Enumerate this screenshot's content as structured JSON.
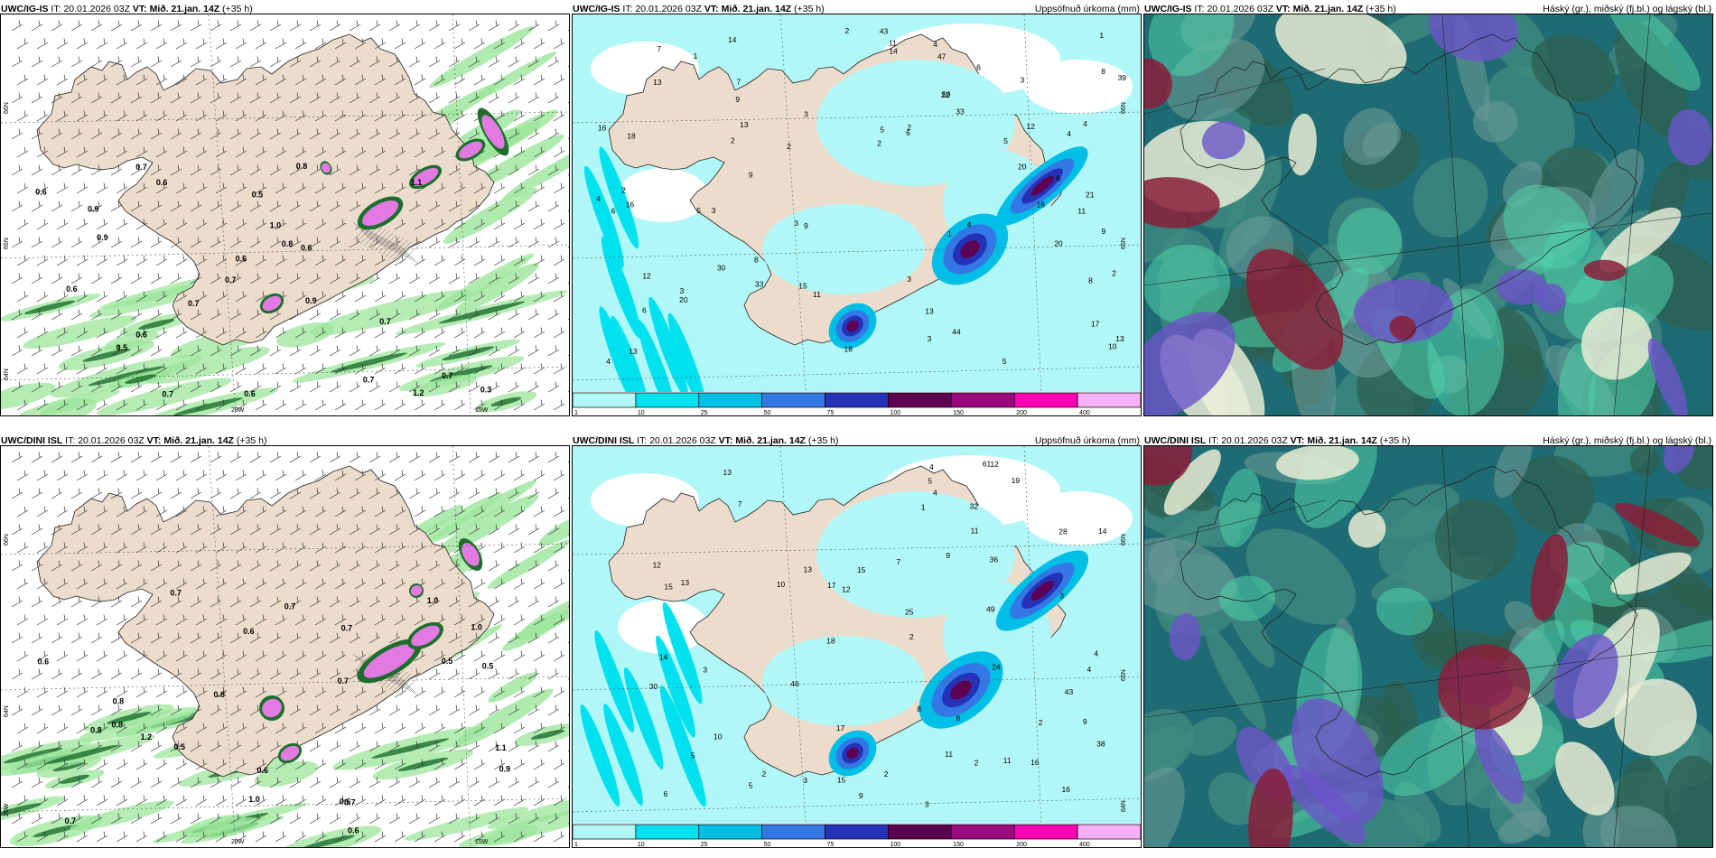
{
  "panels": [
    {
      "id": "ig-wind",
      "model": "UWC/IG-IS",
      "it_label": "IT:",
      "it_value": "20.01.2026 03Z",
      "vt_label": "VT:",
      "vt_value": "Mið. 21.jan. 14Z",
      "lead": "(+35 h)",
      "right_title": "",
      "axis_labels": [
        "66N",
        "65N",
        "64N",
        "20W",
        "15W"
      ],
      "values": [
        "0.5",
        "0.7",
        "0.9",
        "0.6",
        "0.6",
        "0.7",
        "0.6",
        "0.6",
        "0.6",
        "0.6",
        "0.5",
        "0.3",
        "1.1",
        "0.7",
        "0.8",
        "0.7",
        "1.0",
        "0.8",
        "0.7",
        "0.9",
        "0.9",
        "0.7",
        "0.6",
        "1.2",
        "0.7"
      ]
    },
    {
      "id": "ig-precip",
      "model": "UWC/IG-IS",
      "it_label": "IT:",
      "it_value": "20.01.2026 03Z",
      "vt_label": "VT:",
      "vt_value": "Mið. 21.jan. 14Z",
      "lead": "(+35 h)",
      "right_title": "Uppsöfnuð úrkoma (mm)",
      "axis_labels": [
        "66N",
        "65N"
      ],
      "values": [
        "3",
        "2",
        "1",
        "2",
        "6",
        "5",
        "3",
        "2",
        "9",
        "8",
        "1",
        "2",
        "4",
        "3",
        "5",
        "6",
        "4",
        "3",
        "6",
        "8",
        "5",
        "9",
        "7",
        "4",
        "3",
        "3",
        "1",
        "2",
        "6",
        "5",
        "4",
        "30",
        "39",
        "44",
        "47",
        "59",
        "33",
        "20",
        "43",
        "21",
        "13",
        "10",
        "8",
        "16",
        "13",
        "18",
        "22",
        "20",
        "18",
        "11",
        "20",
        "13",
        "17",
        "12",
        "11",
        "16",
        "2",
        "7",
        "13",
        "33",
        "16",
        "8",
        "9",
        "14",
        "15",
        "13",
        "12",
        "14",
        "11",
        "9",
        "4",
        "4",
        "2",
        "3"
      ]
    },
    {
      "id": "ig-cloud",
      "model": "UWC/IG-IS",
      "it_label": "IT:",
      "it_value": "20.01.2026 03Z",
      "vt_label": "VT:",
      "vt_value": "Mið. 21.jan. 14Z",
      "lead": "(+35 h)",
      "right_title": "Háský (gr.), miðský (fj.bl.) og lágský (bl.)",
      "axis_labels": [],
      "values": []
    },
    {
      "id": "dini-wind",
      "model": "UWC/DINI ISL",
      "it_label": "IT:",
      "it_value": "20.01.2026 03Z",
      "vt_label": "VT:",
      "vt_value": "Mið. 21.jan. 14Z",
      "lead": "(+35 h)",
      "right_title": "",
      "axis_labels": [
        "66N",
        "64N",
        "25W",
        "20W",
        "15W"
      ],
      "values": [
        "0.7",
        "0.5",
        "0.6",
        "0.8",
        "0.8",
        "1.2",
        "0.7",
        "0.7",
        "0.8",
        "0.5",
        "0.9",
        "1.0",
        "0.6",
        "1.0",
        "0.8",
        "0.5",
        "0.7",
        "0.7",
        "1.1",
        "0.6",
        "1.0",
        "0.6",
        "0.7",
        "0.6"
      ]
    },
    {
      "id": "dini-precip",
      "model": "UWC/DINI ISL",
      "it_label": "IT:",
      "it_value": "20.01.2026 03Z",
      "vt_label": "VT:",
      "vt_value": "Mið. 21.jan. 14Z",
      "lead": "(+35 h)",
      "right_title": "Uppsöfnuð úrkoma (mm)",
      "axis_labels": [
        "66N",
        "65N",
        "64N"
      ],
      "values": [
        "2",
        "2",
        "3",
        "4",
        "1",
        "2",
        "3",
        "5",
        "6",
        "9",
        "4",
        "3",
        "2",
        "5",
        "7",
        "8",
        "9",
        "11",
        "18",
        "25",
        "32",
        "46",
        "43",
        "36",
        "49",
        "61",
        "30",
        "28",
        "17",
        "14",
        "12",
        "13",
        "15",
        "19",
        "16",
        "12",
        "10",
        "13",
        "15",
        "11",
        "16",
        "17",
        "24",
        "38",
        "12",
        "15",
        "14",
        "11",
        "10",
        "13",
        "9",
        "5",
        "4",
        "4",
        "8",
        "7",
        "3",
        "2"
      ]
    },
    {
      "id": "dini-cloud",
      "model": "UWC/DINI ISL",
      "it_label": "IT:",
      "it_value": "20.01.2026 03Z",
      "vt_label": "VT:",
      "vt_value": "Mið. 21.jan. 14Z",
      "lead": "(+35 h)",
      "right_title": "Háský (gr.), miðský (fj.bl.) og lágský (bl.)",
      "axis_labels": [],
      "values": []
    }
  ],
  "colorbar": {
    "ticks": [
      "1",
      "10",
      "25",
      "50",
      "75",
      "100",
      "150",
      "200",
      "400"
    ],
    "colors": [
      "#b2f7f7",
      "#00e1f0",
      "#00bfe6",
      "#3478e6",
      "#2432b8",
      "#5e0052",
      "#9b0a7d",
      "#ff00b4",
      "#f7b2f7"
    ]
  },
  "colors": {
    "land": "#ecdccb",
    "sea_wind": "#ffffff",
    "sea_precip": "#b2f7f7",
    "cloud_base": "#1f6b73",
    "wind_green": "#9be59b",
    "wind_dark": "#1b6e2c",
    "magenta": "#e27ae2"
  }
}
